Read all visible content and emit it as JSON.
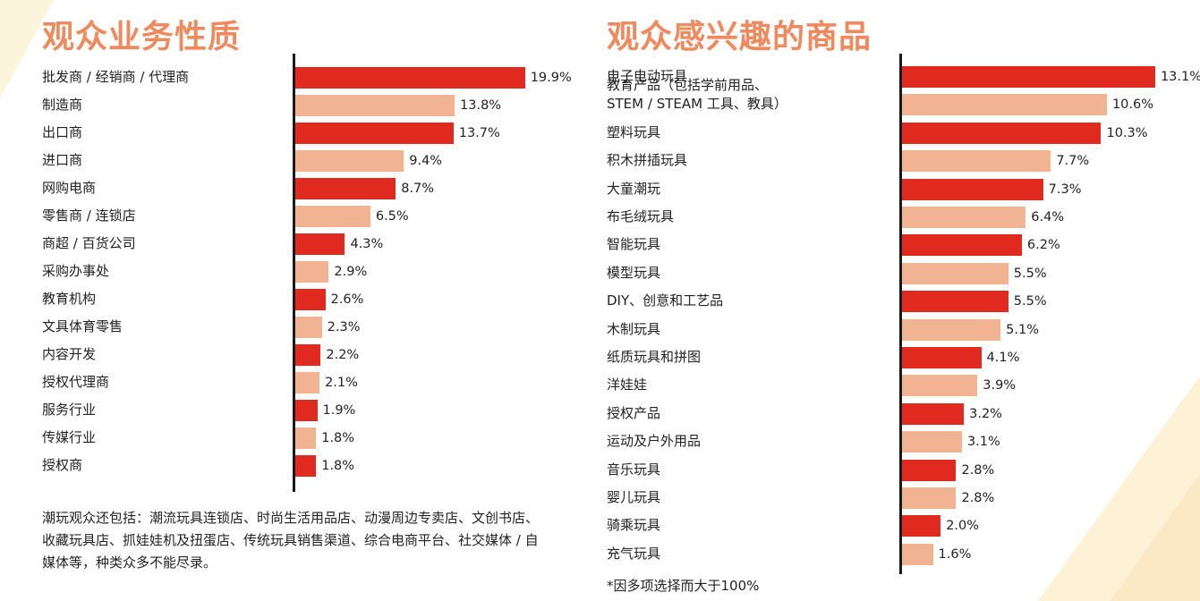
{
  "colors": {
    "title": "#ef8a5e",
    "bar_primary": "#e02a1f",
    "bar_secondary": "#f2b393",
    "axis": "#1a1a1a"
  },
  "chart_data": [
    {
      "id": "left",
      "type": "bar",
      "orientation": "horizontal",
      "title": "观众业务性质",
      "xlim": [
        0,
        20
      ],
      "categories": [
        "批发商 / 经销商 / 代理商",
        "制造商",
        "出口商",
        "进口商",
        "网购电商",
        "零售商 / 连锁店",
        "商超 / 百货公司",
        "采购办事处",
        "教育机构",
        "文具体育零售",
        "内容开发",
        "授权代理商",
        "服务行业",
        "传媒行业",
        "授权商"
      ],
      "values": [
        19.9,
        13.8,
        13.7,
        9.4,
        8.7,
        6.5,
        4.3,
        2.9,
        2.6,
        2.3,
        2.2,
        2.1,
        1.9,
        1.8,
        1.8
      ],
      "value_labels": [
        "19.9%",
        "13.8%",
        "13.7%",
        "9.4%",
        "8.7%",
        "6.5%",
        "4.3%",
        "2.9%",
        "2.6%",
        "2.3%",
        "2.2%",
        "2.1%",
        "1.9%",
        "1.8%",
        "1.8%"
      ],
      "footnote": "潮玩观众还包括：潮流玩具连锁店、时尚生活用品店、动漫周边专卖店、文创书店、收藏玩具店、抓娃娃机及扭蛋店、传统玩具销售渠道、综合电商平台、社交媒体 / 自媒体等，种类众多不能尽录。"
    },
    {
      "id": "right",
      "type": "bar",
      "orientation": "horizontal",
      "title": "观众感兴趣的商品",
      "xlim": [
        0,
        13.5
      ],
      "categories": [
        "电子电动玩具",
        "教育产品（包括学前用品、\nSTEM / STEAM 工具、教具）",
        "塑料玩具",
        "积木拼插玩具",
        "大童潮玩",
        "布毛绒玩具",
        "智能玩具",
        "模型玩具",
        "DIY、创意和工艺品",
        "木制玩具",
        "纸质玩具和拼图",
        "洋娃娃",
        "授权产品",
        "运动及户外用品",
        "音乐玩具",
        "婴儿玩具",
        "骑乘玩具",
        "充气玩具"
      ],
      "values": [
        13.1,
        10.6,
        10.3,
        7.7,
        7.3,
        6.4,
        6.2,
        5.5,
        5.5,
        5.1,
        4.1,
        3.9,
        3.2,
        3.1,
        2.8,
        2.8,
        2.0,
        1.6
      ],
      "value_labels": [
        "13.1%",
        "10.6%",
        "10.3%",
        "7.7%",
        "7.3%",
        "6.4%",
        "6.2%",
        "5.5%",
        "5.5%",
        "5.1%",
        "4.1%",
        "3.9%",
        "3.2%",
        "3.1%",
        "2.8%",
        "2.8%",
        "2.0%",
        "1.6%"
      ],
      "footnote": "*因多项选择而大于100%"
    }
  ]
}
